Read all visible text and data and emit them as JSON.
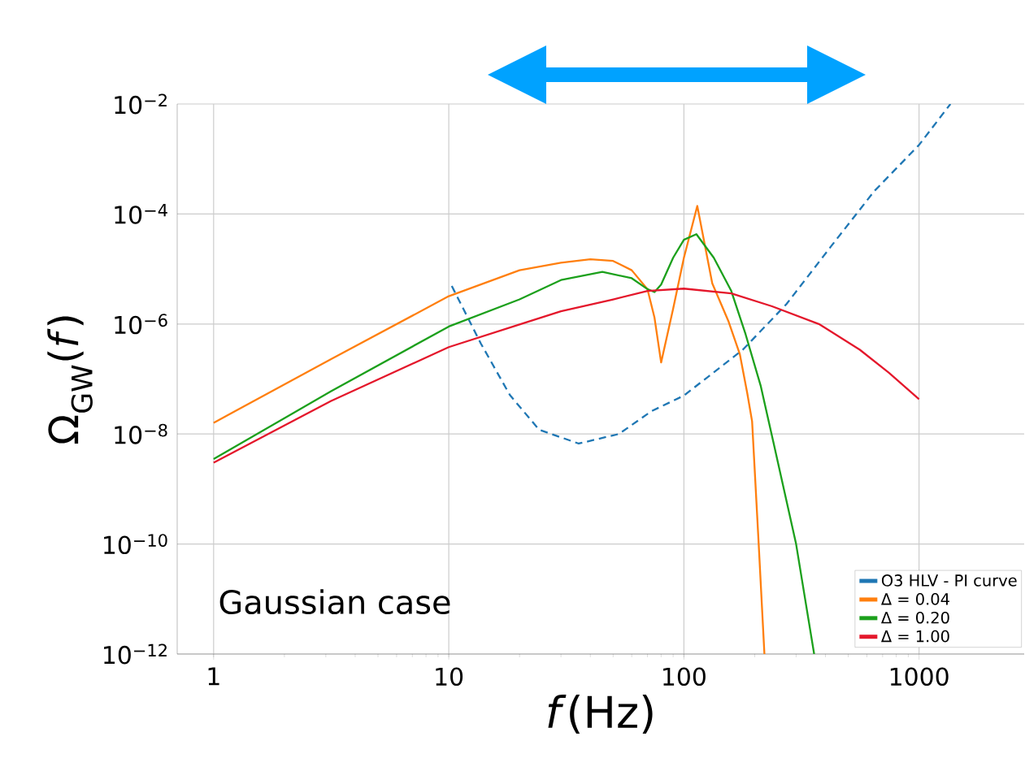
{
  "chart_data": {
    "type": "line",
    "xlabel": "*f*(Hz)",
    "ylabel": "Ω$_{GW}$(*f*)",
    "log": "xy",
    "grid": true,
    "legend": "bottom right",
    "xlim": [
      0.7,
      2800
    ],
    "xticks": [
      1,
      10,
      100,
      1000
    ],
    "ylim": [
      1e-12,
      0.01
    ],
    "yticks": [
      {
        "value": 1e-12,
        "label": "10$^{−12}$"
      },
      {
        "value": 1e-10,
        "label": "10$^{−10}$"
      },
      {
        "value": 1e-08,
        "label": "10$^{−8}$"
      },
      {
        "value": 1e-06,
        "label": "10$^{−6}$"
      },
      {
        "value": 0.0001,
        "label": "10$^{−4}$"
      },
      {
        "value": 0.01,
        "label": "10$^{−2}$"
      }
    ],
    "annotations": [
      "Gaussian case"
    ],
    "series": [
      {
        "name": "O3 HLV - PI curve",
        "color": "#1f77b4",
        "line_style": "dashed",
        "x": [
          10.3,
          13.7,
          18.2,
          24.2,
          35.7,
          52.9,
          72.8,
          100,
          178,
          273,
          420,
          645,
          1000,
          1360
        ],
        "values": [
          4.9e-06,
          4.4e-07,
          5.1e-08,
          1.2e-08,
          6.7e-09,
          1e-08,
          2.6e-08,
          5e-08,
          3.4e-07,
          2.3e-06,
          2.5e-05,
          0.00026,
          0.0018,
          0.01
        ]
      },
      {
        "name": "Δ = 0.04",
        "color": "#ff7f0e",
        "line_style": "solid",
        "x": [
          1,
          3.16,
          10,
          20,
          30,
          40,
          50,
          60,
          70,
          75,
          80,
          90,
          100,
          114,
          132,
          155,
          173,
          186,
          195,
          208,
          220
        ],
        "values": [
          1.6e-08,
          2.3e-07,
          3.2e-06,
          9.5e-06,
          1.3e-05,
          1.5e-05,
          1.4e-05,
          9.5e-06,
          4.3e-06,
          1.3e-06,
          2e-07,
          1.9e-06,
          1.6e-05,
          0.00014,
          5.5e-06,
          1.1e-06,
          2.8e-07,
          5.5e-08,
          1.7e-08,
          1e-10,
          1e-12
        ]
      },
      {
        "name": "Δ = 0.20",
        "color": "#1ca01c",
        "line_style": "solid",
        "x": [
          1,
          3.16,
          10,
          20,
          30,
          45,
          60,
          70,
          75,
          80,
          90,
          100,
          113,
          134,
          159,
          183,
          212,
          240,
          300,
          358
        ],
        "values": [
          3.5e-09,
          6e-08,
          9e-07,
          2.8e-06,
          6.3e-06,
          8.9e-06,
          6.8e-06,
          4.3e-06,
          3.8e-06,
          5.2e-06,
          1.6e-05,
          3.4e-05,
          4.3e-05,
          1.6e-05,
          4e-06,
          6.5e-07,
          7.6e-08,
          7.2e-09,
          1e-10,
          1e-12
        ]
      },
      {
        "name": "Δ = 1.00",
        "color": "#e4172b",
        "line_style": "solid",
        "x": [
          1,
          3.16,
          10,
          20,
          30,
          50,
          70,
          100,
          159,
          237,
          375,
          560,
          745,
          1000
        ],
        "values": [
          3e-09,
          4e-08,
          3.8e-07,
          9.8e-07,
          1.7e-06,
          2.8e-06,
          4e-06,
          4.4e-06,
          3.6e-06,
          2.1e-06,
          1e-06,
          3.4e-07,
          1.3e-07,
          4.3e-08
        ]
      }
    ]
  }
}
